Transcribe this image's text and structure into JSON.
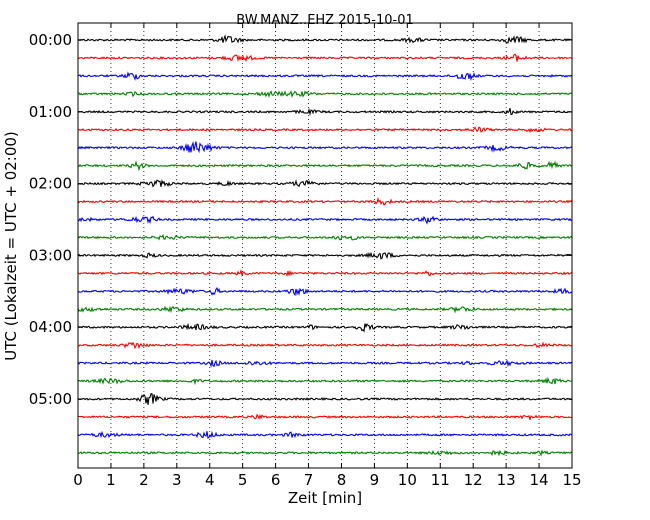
{
  "chart_data": {
    "type": "line",
    "title": "BW.MANZ..EHZ 2015-10-01",
    "xlabel": "Zeit  [min]",
    "ylabel": "UTC (Lokalzeit = UTC + 02:00)",
    "xlim": [
      0,
      15
    ],
    "xticks": [
      "0",
      "1",
      "2",
      "3",
      "4",
      "5",
      "6",
      "7",
      "8",
      "9",
      "10",
      "11",
      "12",
      "13",
      "14",
      "15"
    ],
    "yticks": [
      "00:00",
      "01:00",
      "02:00",
      "03:00",
      "04:00",
      "05:00"
    ],
    "grid": "vertical-dotted",
    "trace_interval_minutes": 15,
    "traces": [
      "00:00",
      "00:15",
      "00:30",
      "00:45",
      "01:00",
      "01:15",
      "01:30",
      "01:45",
      "02:00",
      "02:15",
      "02:30",
      "02:45",
      "03:00",
      "03:15",
      "03:30",
      "03:45",
      "04:00",
      "04:15",
      "04:30",
      "04:45",
      "05:00",
      "05:15",
      "05:30",
      "05:45"
    ],
    "colors": [
      "#000000",
      "#ff0000",
      "#0000ff",
      "#008000"
    ]
  }
}
